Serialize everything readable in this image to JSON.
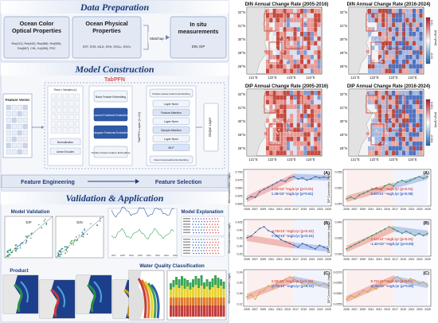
{
  "left": {
    "data_preparation": {
      "title": "Data Preparation",
      "ocean_color": {
        "title_1": "Ocean Color",
        "title_2": "Optical Properties",
        "vars_1": "Rrs(412), Rrs(443), Rrs(488), Rrs(555),",
        "vars_2": "Rrs(667), CHL, Kd(490), POC"
      },
      "ocean_physical": {
        "title_1": "Ocean Physical",
        "title_2": "Properties",
        "vars": "SST, SSS, MLD, SSH, SSCu, SSCv"
      },
      "matchup": "Matchup",
      "in_situ": {
        "title_1": "In situ",
        "title_2": "measurements",
        "vars": "DIN, DIP"
      }
    },
    "model_construction": {
      "title": "Model Construction",
      "model_name": "TabPFN",
      "feature_vector": "Feature Vector",
      "rows": "Rows × Samples (n)",
      "normalization": "Normalization",
      "linear_encoder": "Linear Encoder",
      "encoders": [
        "Basic Feature Embedding",
        "Learned Positional Embedding",
        "Subspace Positional Embedding",
        "Position-Aware Feature Embedding"
      ],
      "layer_label": "TabPFN Layer (L=12)",
      "layers": [
        "Layer Norm",
        "Feature Attention",
        "Layer Norm",
        "Sample Attention",
        "Layer Norm",
        "MLP"
      ],
      "pos_aware": "Position-Aware Feature Embedding",
      "dual_contextualized": "Dual-Contextualized Embedding",
      "output_layer": "Output Layer",
      "feature_engineering": "Feature Engineering",
      "feature_selection": "Feature Selection"
    },
    "validation": {
      "title": "Validation & Application",
      "model_validation": "Model Validation",
      "model_explanation": "Model Explanation",
      "product": "Product",
      "water_quality": "Water Quality Classification",
      "scatter_labels": [
        "DIP",
        "DIN"
      ]
    }
  },
  "maps": {
    "panels": [
      {
        "title": "DIN Annual Change Rate (2005-2016)"
      },
      {
        "title": "DIN Annual Change Rate (2016-2024)"
      },
      {
        "title": "DIP Annual Change Rate (2005-2016)"
      },
      {
        "title": "DIP Annual Change Rate (2016-2024)"
      }
    ],
    "lat_ticks": [
      "32°N",
      "31°N",
      "30°N",
      "29°N",
      "28°N"
    ],
    "lon_ticks": [
      "121°E",
      "122°E",
      "123°E",
      "124°E"
    ],
    "region_labels": [
      "A",
      "B",
      "C"
    ],
    "din_colorbar": {
      "top": "0.01",
      "bottom": "-0.01",
      "unit": "(mg/L/year)"
    },
    "dip_colorbar": {
      "top": "0.001",
      "bottom": "-0.001",
      "unit": "(mg/L/year)"
    }
  },
  "chart_data": [
    {
      "type": "line",
      "panel": "(A)",
      "ylabel": "DIN Concentration (mg/L)",
      "y_ticks": [
        "0.600",
        "0.625",
        "0.650",
        "0.675",
        "0.700"
      ],
      "series": [
        {
          "values": [
            0.612,
            0.622,
            0.618,
            0.642,
            0.652,
            0.66,
            0.67,
            0.68,
            0.69,
            0.685,
            0.7,
            0.705,
            0.695,
            0.7,
            0.69,
            0.695,
            0.705,
            0.7,
            0.703,
            0.7
          ]
        }
      ],
      "annotation_1": "1.04×10⁻²mg/L/yr (p<0.01)",
      "annotation_2": "1.36×10⁻³mg/L/yr (p=0.51)"
    },
    {
      "type": "line",
      "panel": "(A)",
      "ylabel": "DIP Concentration (mg/L)",
      "y_ticks": [
        "0.045",
        "0.050",
        "0.055"
      ],
      "series": [
        {
          "values": [
            0.045,
            0.046,
            0.045,
            0.047,
            0.048,
            0.049,
            0.05,
            0.051,
            0.05,
            0.052,
            0.053,
            0.052,
            0.054,
            0.055,
            0.054,
            0.055,
            0.056,
            0.057,
            0.056,
            0.057
          ]
        }
      ],
      "annotation_1": "3.18×10⁻⁴mg/L/yr (p<0.01)",
      "annotation_2": "8.30×10⁻⁴mg/L/yr (p<0.05)"
    },
    {
      "type": "line",
      "panel": "(B)",
      "ylabel": "DIN Concentration (mg/L)",
      "y_ticks": [
        "0.25",
        "0.30",
        "0.35",
        "0.40",
        "0.425"
      ],
      "series": [
        {
          "values": [
            0.33,
            0.34,
            0.36,
            0.38,
            0.39,
            0.37,
            0.36,
            0.34,
            0.32,
            0.31,
            0.3,
            0.29,
            0.28,
            0.3,
            0.29,
            0.28,
            0.27,
            0.29,
            0.28,
            0.27
          ]
        }
      ],
      "annotation_1": "-4.75×10⁻³mg/L/yr (p<0.02)",
      "annotation_2": "-7.44×10⁻³mg/L/yr (p<0.01)"
    },
    {
      "type": "line",
      "panel": "(B)",
      "ylabel": "DIP Concentration (mg/L)",
      "y_ticks": [
        "0.030",
        "0.035",
        "0.040"
      ],
      "series": [
        {
          "values": [
            0.031,
            0.032,
            0.033,
            0.034,
            0.035,
            0.036,
            0.037,
            0.038,
            0.039,
            0.04,
            0.041,
            0.04,
            0.039,
            0.038,
            0.039,
            0.038,
            0.037,
            0.038,
            0.037,
            0.038
          ]
        }
      ],
      "annotation_1": "2.12×10⁻⁴mg/L/yr (p<0.01)",
      "annotation_2": "-1.42×10⁻⁴mg/L/yr (p<0.05)"
    },
    {
      "type": "line",
      "panel": "(C)",
      "ylabel": "DIN Concentration (mg/L)",
      "y_ticks": [
        "0.12",
        "0.16",
        "0.20",
        "0.24"
      ],
      "series": [
        {
          "values": [
            0.14,
            0.15,
            0.13,
            0.16,
            0.17,
            0.19,
            0.18,
            0.2,
            0.21,
            0.22,
            0.23,
            0.22,
            0.21,
            0.2,
            0.19,
            0.21,
            0.2,
            0.19,
            0.2,
            0.19
          ]
        }
      ],
      "annotation_1": "2.00×10⁻³mg/L/yr (p<0.01)",
      "annotation_2": "-2.79×10⁻³mg/L/yr (p<0.01)"
    },
    {
      "type": "line",
      "panel": "(C)",
      "ylabel": "DIP Concentration (mg/L)",
      "y_ticks": [
        "0.0255",
        "0.0260",
        "0.0265",
        "0.0270"
      ],
      "series": [
        {
          "values": [
            0.0256,
            0.0258,
            0.0257,
            0.0259,
            0.0261,
            0.026,
            0.0263,
            0.0262,
            0.0265,
            0.0267,
            0.0266,
            0.0268,
            0.0269,
            0.0267,
            0.0266,
            0.0268,
            0.0267,
            0.0265,
            0.0266,
            0.0264
          ]
        }
      ],
      "annotation_1": "8.70×10⁻⁵mg/L/yr (p<0.01)",
      "annotation_2": "-8.18×10⁻⁵mg/L/yr (p=0.06)"
    }
  ],
  "x_ticks": [
    "2005",
    "2007",
    "2009",
    "2011",
    "2013",
    "2015",
    "2017",
    "2019",
    "2021",
    "2023",
    "2025"
  ],
  "colors": {
    "accent_red": "#d9534f",
    "accent_blue": "#3b67c4",
    "header_blue": "#1d3a77",
    "header_bg": "#e9eef7"
  }
}
